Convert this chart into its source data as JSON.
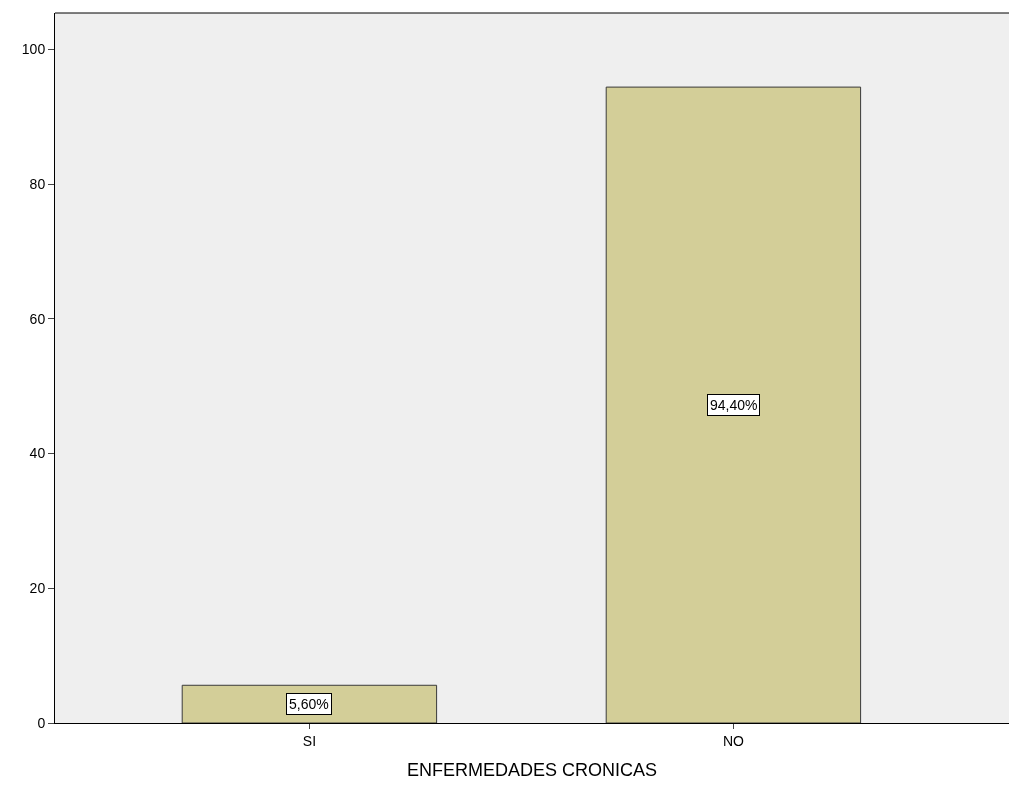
{
  "chart_data": {
    "type": "bar",
    "xlabel": "ENFERMEDADES CRONICAS",
    "categories": [
      "SI",
      "NO"
    ],
    "values": [
      5.6,
      94.4
    ],
    "value_labels": [
      "5,60%",
      "94,40%"
    ],
    "color": "#d3ce98",
    "ylim": [
      0,
      105.4
    ],
    "yticks": [
      0,
      20,
      40,
      60,
      80,
      100
    ],
    "grid": false
  }
}
